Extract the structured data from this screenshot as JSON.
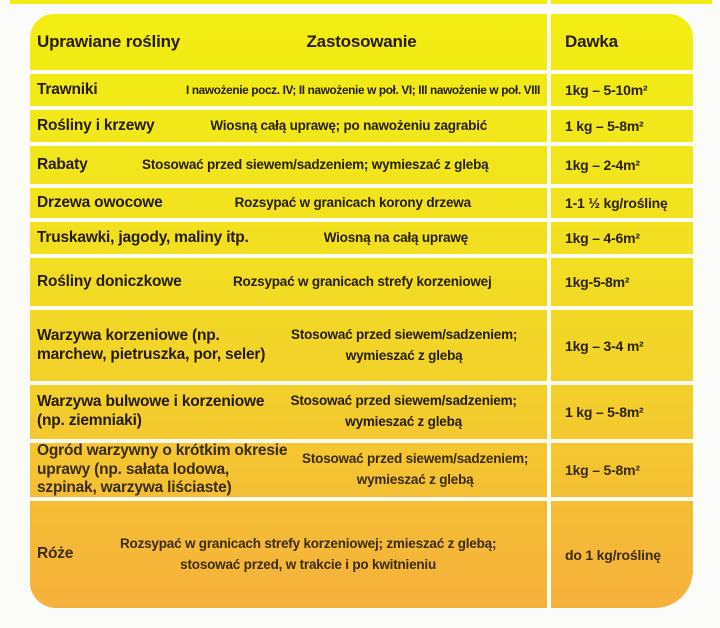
{
  "table": {
    "columns": [
      "Uprawiane rośliny",
      "Zastosowanie",
      "Dawka"
    ],
    "rows": [
      {
        "plant": "Trawniki",
        "usage": "I nawożenie pocz. IV; II nawożenie w poł. VI; III nawożenie w poł. VIII",
        "dose": "1kg – 5-10m²"
      },
      {
        "plant": "Rośliny i krzewy",
        "usage": "Wiosną całą uprawę; po nawożeniu zagrabić",
        "dose": "1 kg – 5-8m²"
      },
      {
        "plant": "Rabaty",
        "usage": "Stosować przed siewem/sadzeniem; wymieszać z glebą",
        "dose": "1kg – 2-4m²"
      },
      {
        "plant": "Drzewa owocowe",
        "usage": "Rozsypać w granicach korony drzewa",
        "dose": "1-1 ½ kg/roślinę"
      },
      {
        "plant": "Truskawki, jagody, maliny itp.",
        "usage": "Wiosną na całą uprawę",
        "dose": "1kg – 4-6m²"
      },
      {
        "plant": "Rośliny doniczkowe",
        "usage": "Rozsypać w granicach strefy korzeniowej",
        "dose": "1kg-5-8m²"
      },
      {
        "plant": "Warzywa korzeniowe (np.\nmarchew, pietruszka, por, seler)",
        "usage": "Stosować przed siewem/sadzeniem;\nwymieszać z glebą",
        "dose": "1kg – 3-4 m²"
      },
      {
        "plant": "Warzywa bulwowe i korzeniowe\n(np. ziemniaki)",
        "usage": "Stosować przed siewem/sadzeniem;\nwymieszać z glebą",
        "dose": "1 kg – 5-8m²"
      },
      {
        "plant": "Ogród warzywny o krótkim okresie\nuprawy (np. sałata lodowa,\nszpinak, warzywa liściaste)",
        "usage": "Stosować przed siewem/sadzeniem;\nwymieszać z glebą",
        "dose": "1kg – 5-8m²"
      },
      {
        "plant": "Róże",
        "usage": "Rozsypać w granicach strefy korzeniowej; zmieszać z glebą;\nstosować przed, w trakcie i po kwitnieniu",
        "dose": "do 1 kg/roślinę"
      }
    ],
    "colors": {
      "top_yellow": "#f3ee12",
      "bottom_orange": "#f6b13c",
      "divider": "#fdfdf2",
      "ink": "#241d04"
    }
  }
}
